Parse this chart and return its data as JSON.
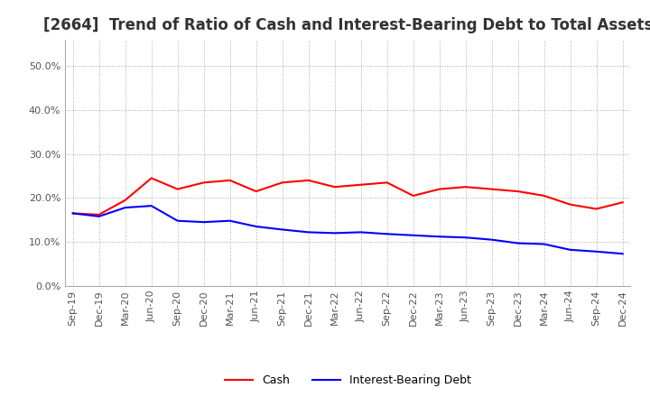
{
  "title": "[2664]  Trend of Ratio of Cash and Interest-Bearing Debt to Total Assets",
  "x_labels": [
    "Sep-19",
    "Dec-19",
    "Mar-20",
    "Jun-20",
    "Sep-20",
    "Dec-20",
    "Mar-21",
    "Jun-21",
    "Sep-21",
    "Dec-21",
    "Mar-22",
    "Jun-22",
    "Sep-22",
    "Dec-22",
    "Mar-23",
    "Jun-23",
    "Sep-23",
    "Dec-23",
    "Mar-24",
    "Jun-24",
    "Sep-24",
    "Dec-24"
  ],
  "cash": [
    0.165,
    0.162,
    0.195,
    0.245,
    0.22,
    0.235,
    0.24,
    0.215,
    0.235,
    0.24,
    0.225,
    0.23,
    0.235,
    0.205,
    0.22,
    0.225,
    0.22,
    0.215,
    0.205,
    0.185,
    0.175,
    0.19
  ],
  "interest_bearing_debt": [
    0.165,
    0.158,
    0.178,
    0.182,
    0.148,
    0.145,
    0.148,
    0.135,
    0.128,
    0.122,
    0.12,
    0.122,
    0.118,
    0.115,
    0.112,
    0.11,
    0.105,
    0.097,
    0.095,
    0.082,
    0.078,
    0.073
  ],
  "cash_color": "#FF0000",
  "ibd_color": "#0000FF",
  "ylim": [
    0.0,
    0.56
  ],
  "yticks": [
    0.0,
    0.1,
    0.2,
    0.3,
    0.4,
    0.5
  ],
  "background_color": "#FFFFFF",
  "grid_color": "#AAAAAA",
  "title_fontsize": 12,
  "legend_labels": [
    "Cash",
    "Interest-Bearing Debt"
  ]
}
